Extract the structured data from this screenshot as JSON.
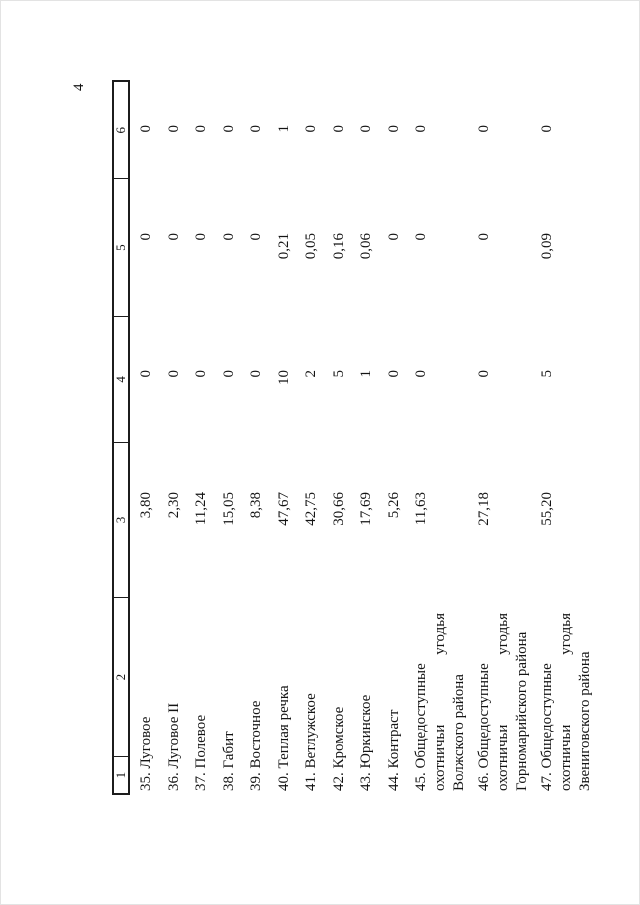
{
  "page": {
    "number": "4"
  },
  "table": {
    "headers": [
      "1",
      "2",
      "3",
      "4",
      "5",
      "6"
    ],
    "rows": [
      {
        "label_lines": [
          "35. Луговое"
        ],
        "col3": "3,80",
        "col4": "0",
        "col5": "0",
        "col6": "0"
      },
      {
        "label_lines": [
          "36. Луговое II"
        ],
        "col3": "2,30",
        "col4": "0",
        "col5": "0",
        "col6": "0"
      },
      {
        "label_lines": [
          "37. Полевое"
        ],
        "col3": "11,24",
        "col4": "0",
        "col5": "0",
        "col6": "0"
      },
      {
        "label_lines": [
          "38. Габит"
        ],
        "col3": "15,05",
        "col4": "0",
        "col5": "0",
        "col6": "0"
      },
      {
        "label_lines": [
          "39. Восточное"
        ],
        "col3": "8,38",
        "col4": "0",
        "col5": "0",
        "col6": "0"
      },
      {
        "label_lines": [
          "40. Теплая речка"
        ],
        "col3": "47,67",
        "col4": "10",
        "col5": "0,21",
        "col6": "1"
      },
      {
        "label_lines": [
          "41. Ветлужское"
        ],
        "col3": "42,75",
        "col4": "2",
        "col5": "0,05",
        "col6": "0"
      },
      {
        "label_lines": [
          "42. Кромское"
        ],
        "col3": "30,66",
        "col4": "5",
        "col5": "0,16",
        "col6": "0"
      },
      {
        "label_lines": [
          "43. Юркинское"
        ],
        "col3": "17,69",
        "col4": "1",
        "col5": "0,06",
        "col6": "0"
      },
      {
        "label_lines": [
          "44. Контраст"
        ],
        "col3": "5,26",
        "col4": "0",
        "col5": "0",
        "col6": "0"
      },
      {
        "label_lines": [
          "45. Общедоступные",
          [
            "охотничьи",
            "угодья"
          ],
          "Волжского района"
        ],
        "col3": "11,63",
        "col4": "0",
        "col5": "0",
        "col6": "0"
      },
      {
        "label_lines": [
          "46. Общедоступные",
          [
            "охотничьи",
            "угодья"
          ],
          "Горномарийского района"
        ],
        "col3": "27,18",
        "col4": "0",
        "col5": "0",
        "col6": "0"
      },
      {
        "label_lines": [
          "47. Общедоступные",
          [
            "охотничьи",
            "угодья"
          ],
          "Звениговского района"
        ],
        "col3": "55,20",
        "col4": "5",
        "col5": "0,09",
        "col6": "0"
      }
    ]
  }
}
